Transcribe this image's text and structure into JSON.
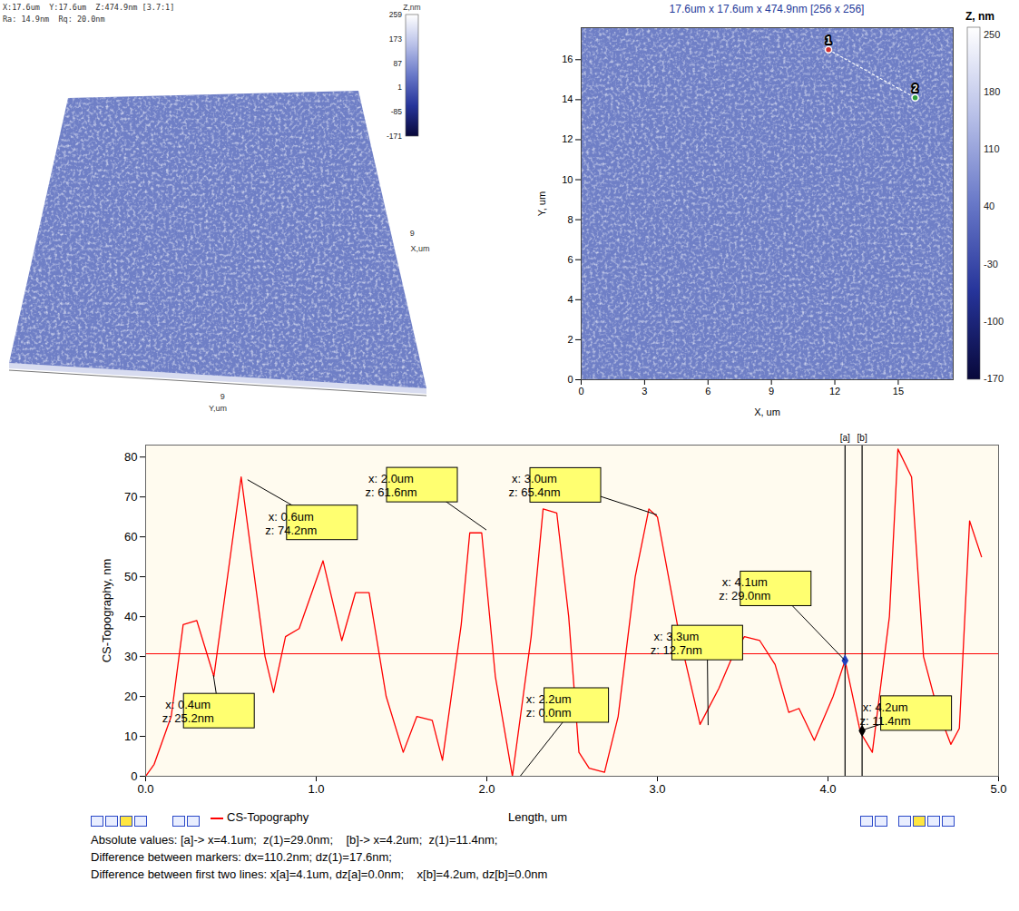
{
  "chart_data": [
    {
      "type": "surface3d",
      "header": [
        "X:17.6um  Y:17.6um  Z:474.9nm [3.7:1]",
        "Ra: 14.9nm  Rq: 20.0nm"
      ],
      "x_label": "X,um",
      "y_label": "Y,um",
      "xlim": [
        0,
        17.6
      ],
      "ylim": [
        0,
        17.6
      ],
      "xticks": [
        9
      ],
      "yticks": [
        9
      ],
      "color": "#6f7fc6",
      "colorbar": {
        "title": "Z,nm",
        "range": [
          -171,
          259
        ],
        "ticks": [
          259,
          173,
          87,
          1,
          -85,
          -171
        ],
        "colors": [
          "#08083a",
          "#26349a",
          "#6878c8",
          "#b8c0e8",
          "#ffffff"
        ]
      }
    },
    {
      "type": "image",
      "title": "17.6um x 17.6um x 474.9nm [256 x 256]",
      "x_label": "X, um",
      "y_label": "Y, um",
      "xlim": [
        0,
        17.6
      ],
      "ylim": [
        0,
        17.6
      ],
      "xticks": [
        0,
        3,
        6,
        9,
        12,
        15
      ],
      "yticks": [
        0,
        2,
        4,
        6,
        8,
        10,
        12,
        14,
        16
      ],
      "color": "#6f7fc6",
      "colorbar": {
        "title": "Z, nm",
        "range": [
          -171,
          259
        ],
        "ticks": [
          250,
          180,
          110,
          40,
          -30,
          -100,
          -170
        ],
        "colors": [
          "#08083a",
          "#26349a",
          "#6878c8",
          "#b8c0e8",
          "#ffffff"
        ]
      },
      "markers": [
        {
          "label": "1",
          "x": 11.7,
          "y": 16.5,
          "color": "#d03030"
        },
        {
          "label": "2",
          "x": 15.8,
          "y": 14.1,
          "color": "#30a040"
        }
      ]
    },
    {
      "type": "line",
      "y_label": "CS-Topography, nm",
      "x_label": "Length, um",
      "xlim": [
        0,
        5
      ],
      "ylim": [
        0,
        83
      ],
      "xticks": [
        0,
        1,
        2,
        3,
        4,
        5
      ],
      "yticks": [
        0,
        10,
        20,
        30,
        40,
        50,
        60,
        70,
        80
      ],
      "x": [
        0,
        0.05,
        0.15,
        0.22,
        0.3,
        0.4,
        0.56,
        0.7,
        0.75,
        0.82,
        0.9,
        1.04,
        1.15,
        1.23,
        1.31,
        1.41,
        1.51,
        1.59,
        1.68,
        1.74,
        1.85,
        1.9,
        1.97,
        2.05,
        2.15,
        2.26,
        2.33,
        2.41,
        2.48,
        2.54,
        2.6,
        2.69,
        2.77,
        2.87,
        2.95,
        3.0,
        3.13,
        3.25,
        3.36,
        3.44,
        3.51,
        3.6,
        3.69,
        3.77,
        3.83,
        3.92,
        4.03,
        4.1,
        4.19,
        4.26,
        4.36,
        4.41,
        4.49,
        4.56,
        4.64,
        4.72,
        4.77,
        4.83,
        4.9
      ],
      "series": [
        {
          "name": "CS-Topography",
          "color": "#ff0000",
          "values": [
            0,
            3,
            15,
            38,
            39,
            25,
            75,
            30,
            21,
            35,
            37,
            54,
            34,
            46,
            46,
            20,
            6,
            15,
            14,
            4,
            38,
            61,
            61,
            25,
            0,
            35,
            67,
            66,
            40,
            6,
            2,
            1,
            15,
            50,
            67,
            65,
            35,
            13,
            22,
            30,
            35,
            34,
            28,
            16,
            17,
            9,
            20,
            29,
            11,
            6,
            40,
            82,
            75,
            30,
            17,
            8,
            12,
            64,
            55
          ]
        }
      ],
      "reference_line": 30.7,
      "annotations": [
        {
          "x": 0.6,
          "y": 74.2,
          "text": [
            "x: 0.6um",
            "z: 74.2nm"
          ]
        },
        {
          "x": 2.0,
          "y": 61.6,
          "text": [
            "x: 2.0um",
            "z: 61.6nm"
          ]
        },
        {
          "x": 3.0,
          "y": 65.4,
          "text": [
            "x: 3.0um",
            "z: 65.4nm"
          ]
        },
        {
          "x": 3.3,
          "y": 12.7,
          "text": [
            "x: 3.3um",
            "z: 12.7nm"
          ]
        },
        {
          "x": 4.1,
          "y": 29.0,
          "text": [
            "x: 4.1um",
            "z: 29.0nm"
          ]
        },
        {
          "x": 0.4,
          "y": 25.2,
          "text": [
            "x: 0.4um",
            "z: 25.2nm"
          ]
        },
        {
          "x": 2.2,
          "y": 0.0,
          "text": [
            "x: 2.2um",
            "z: 0.0nm"
          ]
        },
        {
          "x": 4.2,
          "y": 11.4,
          "text": [
            "x: 4.2um",
            "z: 11.4nm"
          ]
        }
      ],
      "cursors": [
        {
          "label": "[a]",
          "x": 4.1,
          "y": 29.0,
          "color": "#2040c0"
        },
        {
          "label": "[b]",
          "x": 4.2,
          "y": 11.4,
          "color": "#000000"
        }
      ],
      "status": [
        "Absolute values: [a]-> x=4.1um;  z(1)=29.0nm;    [b]-> x=4.2um;  z(1)=11.4nm;",
        "Difference between markers: dx=110.2nm; dz(1)=17.6nm;",
        "Difference between first two lines: x[a]=4.1um, dz[a]=0.0nm;    x[b]=4.2um, dz[b]=0.0nm"
      ]
    }
  ]
}
